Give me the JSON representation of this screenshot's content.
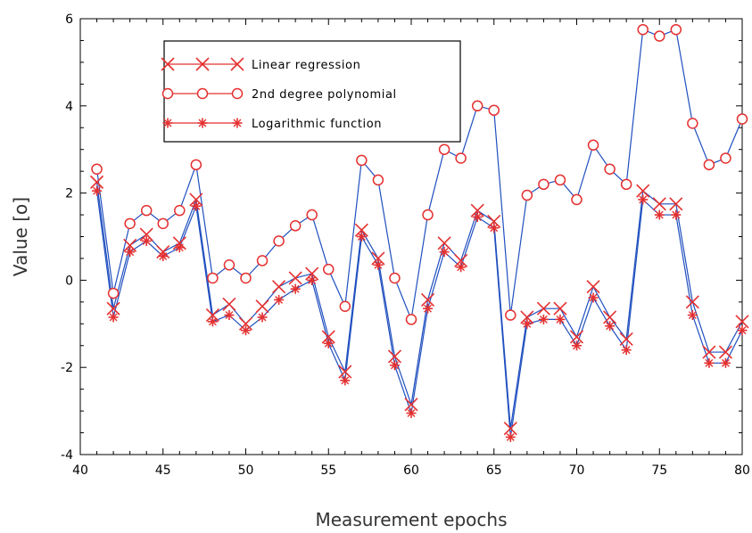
{
  "chart_data": {
    "type": "line",
    "xlabel": "Measurement epochs",
    "ylabel": "Value [o]",
    "xlim": [
      40,
      80
    ],
    "ylim": [
      -4,
      6
    ],
    "xticks": [
      "40",
      "45",
      "50",
      "55",
      "60",
      "65",
      "70",
      "75",
      "80"
    ],
    "yticks": [
      "-4",
      "-2",
      "0",
      "2",
      "4",
      "6"
    ],
    "grid": false,
    "legend_position": "top-left",
    "x": [
      41,
      42,
      43,
      44,
      45,
      46,
      47,
      48,
      49,
      50,
      51,
      52,
      53,
      54,
      55,
      56,
      57,
      58,
      59,
      60,
      61,
      62,
      63,
      64,
      65,
      66,
      67,
      68,
      69,
      70,
      71,
      72,
      73,
      74,
      75,
      76,
      77,
      78,
      79,
      80
    ],
    "series": [
      {
        "name": "Linear regression",
        "marker": "x",
        "line_color": "#1f4fbf",
        "marker_color": "#e53030",
        "values": [
          2.25,
          -0.65,
          0.8,
          1.05,
          0.65,
          0.85,
          1.85,
          -0.8,
          -0.55,
          -1.0,
          -0.6,
          -0.15,
          0.05,
          0.15,
          -1.3,
          -2.1,
          1.15,
          0.5,
          -1.75,
          -2.85,
          -0.45,
          0.85,
          0.45,
          1.6,
          1.35,
          -3.4,
          -0.85,
          -0.65,
          -0.65,
          -1.3,
          -0.15,
          -0.85,
          -1.35,
          2.05,
          1.75,
          1.75,
          -0.5,
          -1.65,
          -1.65,
          -0.95
        ]
      },
      {
        "name": "2nd degree polynomial",
        "marker": "o",
        "line_color": "#1f4fbf",
        "marker_color": "#e53030",
        "values": [
          2.55,
          -0.3,
          1.3,
          1.6,
          1.3,
          1.6,
          2.65,
          0.05,
          0.35,
          0.05,
          0.45,
          0.9,
          1.25,
          1.5,
          0.25,
          -0.6,
          2.75,
          2.3,
          0.05,
          -0.9,
          1.5,
          3.0,
          2.8,
          4.0,
          3.9,
          -0.8,
          1.95,
          2.2,
          2.3,
          1.85,
          3.1,
          2.55,
          2.2,
          5.75,
          5.6,
          5.75,
          3.6,
          2.65,
          2.8,
          3.7
        ]
      },
      {
        "name": "Logarithmic function",
        "marker": "asterisk",
        "line_color": "#1f4fbf",
        "marker_color": "#e53030",
        "values": [
          2.05,
          -0.85,
          0.65,
          0.9,
          0.55,
          0.75,
          1.7,
          -0.95,
          -0.8,
          -1.15,
          -0.85,
          -0.45,
          -0.2,
          0.0,
          -1.45,
          -2.3,
          1.0,
          0.35,
          -1.95,
          -3.05,
          -0.65,
          0.65,
          0.3,
          1.45,
          1.2,
          -3.6,
          -1.0,
          -0.9,
          -0.9,
          -1.5,
          -0.4,
          -1.05,
          -1.6,
          1.85,
          1.5,
          1.5,
          -0.8,
          -1.9,
          -1.9,
          -1.15
        ]
      }
    ]
  }
}
